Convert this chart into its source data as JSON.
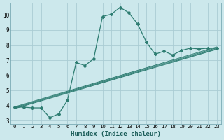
{
  "xlabel": "Humidex (Indice chaleur)",
  "bg_color": "#cce8ec",
  "grid_color": "#aaccd4",
  "line_color": "#2e7d72",
  "xlim": [
    -0.5,
    23.5
  ],
  "ylim": [
    2.8,
    10.8
  ],
  "yticks": [
    3,
    4,
    5,
    6,
    7,
    8,
    9,
    10
  ],
  "xticks": [
    0,
    1,
    2,
    3,
    4,
    5,
    6,
    7,
    8,
    9,
    10,
    11,
    12,
    13,
    14,
    15,
    16,
    17,
    18,
    19,
    20,
    21,
    22,
    23
  ],
  "curve_x": [
    0,
    1,
    2,
    3,
    4,
    5,
    6,
    7,
    8,
    9,
    10,
    11,
    12,
    13,
    14,
    15,
    16,
    17,
    18,
    19,
    20,
    21,
    22,
    23
  ],
  "curve_y": [
    3.9,
    3.9,
    3.85,
    3.85,
    3.2,
    3.45,
    4.35,
    6.85,
    6.65,
    7.1,
    9.9,
    10.05,
    10.5,
    10.15,
    9.4,
    8.2,
    7.4,
    7.6,
    7.35,
    7.65,
    7.8,
    7.75,
    7.8,
    7.8
  ],
  "diag_lines": [
    {
      "x": [
        0,
        23
      ],
      "y": [
        3.88,
        7.82
      ]
    },
    {
      "x": [
        0,
        23
      ],
      "y": [
        3.92,
        7.88
      ]
    },
    {
      "x": [
        0,
        23
      ],
      "y": [
        3.84,
        7.76
      ]
    },
    {
      "x": [
        0,
        23
      ],
      "y": [
        3.8,
        7.72
      ]
    }
  ]
}
